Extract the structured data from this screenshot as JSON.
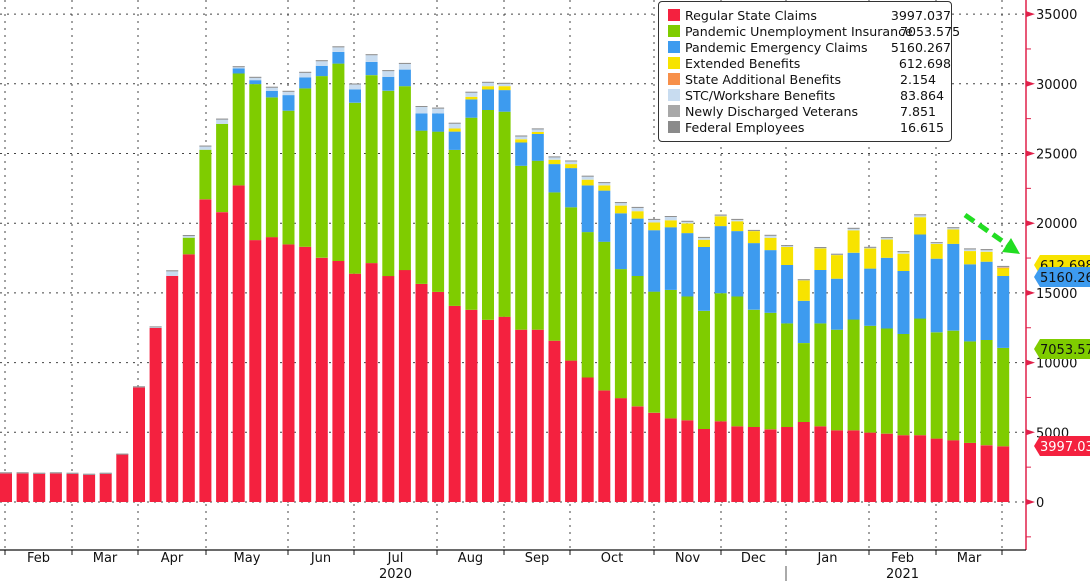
{
  "chart_data": {
    "type": "bar",
    "stacked": true,
    "y_axis": {
      "position": "right",
      "ylim": [
        -3000,
        35500
      ],
      "ticks": [
        0,
        5000,
        10000,
        15000,
        20000,
        25000,
        30000,
        35000
      ]
    },
    "grid": true,
    "legend_placement": "top-right",
    "x_ticks": {
      "months": [
        "Feb",
        "Mar",
        "Apr",
        "May",
        "Jun",
        "Jul",
        "Aug",
        "Sep",
        "Oct",
        "Nov",
        "Dec",
        "Jan",
        "Feb",
        "Mar"
      ],
      "years": [
        "2020",
        "2021"
      ]
    },
    "series": [
      {
        "name": "Regular State Claims",
        "color": "#f4213f",
        "last": "3997.037",
        "values": [
          2090,
          2090,
          2060,
          2090,
          2060,
          1990,
          2060,
          3440,
          8240,
          12490,
          16220,
          17770,
          21710,
          20790,
          22710,
          18790,
          19000,
          18480,
          18310,
          17520,
          17290,
          16380,
          17140,
          16210,
          16640,
          15640,
          15070,
          14070,
          13790,
          13070,
          13290,
          12360,
          12360,
          11570,
          10140,
          8930,
          8000,
          7450,
          6860,
          6400,
          6000,
          5860,
          5240,
          5790,
          5430,
          5380,
          5210,
          5380,
          5740,
          5430,
          5140,
          5140,
          4980,
          4900,
          4790,
          4790,
          4550,
          4430,
          4240,
          4070,
          3997.037
        ]
      },
      {
        "name": "Pandemic Unemployment Insurance",
        "color": "#7fcc00",
        "last": "7053.575",
        "values": [
          0,
          0,
          0,
          0,
          0,
          0,
          0,
          0,
          0,
          0,
          0,
          1190,
          3560,
          6330,
          8030,
          11190,
          10020,
          9590,
          11360,
          13030,
          14160,
          12260,
          13480,
          13290,
          13190,
          11000,
          11500,
          11190,
          13780,
          15050,
          14710,
          11760,
          12120,
          10640,
          11000,
          10430,
          10670,
          9260,
          9350,
          8690,
          9210,
          8880,
          8470,
          9190,
          9310,
          8410,
          8360,
          7430,
          5660,
          7380,
          7220,
          7950,
          7660,
          7550,
          7260,
          8370,
          7620,
          7860,
          7280,
          7550,
          7053.575
        ]
      },
      {
        "name": "Pandemic Emergency Claims",
        "color": "#3d9bef",
        "last": "5160.267",
        "values": [
          0,
          0,
          0,
          0,
          0,
          0,
          0,
          0,
          0,
          0,
          0,
          0,
          0,
          0,
          360,
          280,
          460,
          1120,
          780,
          740,
          840,
          950,
          950,
          1000,
          1190,
          1240,
          1310,
          1310,
          1310,
          1470,
          1550,
          1670,
          1920,
          2030,
          2810,
          3350,
          3670,
          4000,
          4120,
          4410,
          4500,
          4550,
          4580,
          4810,
          4690,
          4780,
          4500,
          4190,
          3030,
          3830,
          3660,
          4790,
          4100,
          5070,
          4520,
          6030,
          5280,
          6230,
          5530,
          5620,
          5160.267
        ]
      },
      {
        "name": "Extended Benefits",
        "color": "#f7e300",
        "last": "612.698",
        "values": [
          0,
          0,
          0,
          0,
          0,
          0,
          0,
          0,
          0,
          0,
          0,
          0,
          0,
          0,
          0,
          0,
          0,
          0,
          0,
          0,
          0,
          0,
          0,
          0,
          0,
          0,
          0,
          220,
          190,
          240,
          280,
          230,
          150,
          310,
          290,
          410,
          370,
          550,
          530,
          550,
          500,
          690,
          520,
          710,
          710,
          860,
          880,
          1290,
          1480,
          1550,
          1690,
          1600,
          1450,
          1310,
          1240,
          1240,
          1070,
          1030,
          950,
          710,
          612.698
        ]
      },
      {
        "name": "State Additional Benefits",
        "color": "#f7904a",
        "last": "2.154",
        "values": [
          0,
          0,
          0,
          0,
          0,
          0,
          0,
          0,
          0,
          0,
          0,
          0,
          0,
          0,
          0,
          0,
          0,
          0,
          0,
          0,
          0,
          0,
          0,
          0,
          0,
          0,
          0,
          0,
          0,
          0,
          0,
          0,
          0,
          0,
          0,
          0,
          0,
          0,
          0,
          0,
          0,
          0,
          0,
          0,
          0,
          0,
          0,
          0,
          0,
          0,
          0,
          0,
          0,
          0,
          0,
          0,
          0,
          0,
          0,
          0,
          2.154
        ]
      },
      {
        "name": "STC/Workshare Benefits",
        "color": "#c8dcf0",
        "last": "83.864",
        "values": [
          10,
          10,
          10,
          10,
          10,
          10,
          10,
          0,
          30,
          80,
          370,
          160,
          270,
          350,
          130,
          210,
          280,
          280,
          380,
          370,
          370,
          400,
          520,
          450,
          450,
          500,
          380,
          390,
          330,
          280,
          210,
          240,
          220,
          210,
          230,
          260,
          210,
          230,
          280,
          230,
          280,
          160,
          180,
          90,
          140,
          60,
          190,
          110,
          40,
          70,
          70,
          160,
          90,
          140,
          160,
          180,
          90,
          130,
          160,
          160,
          83.864
        ]
      },
      {
        "name": "Newly Discharged Veterans",
        "color": "#a8a8a8",
        "last": "7.851",
        "values": [
          10,
          10,
          10,
          10,
          10,
          10,
          10,
          10,
          10,
          10,
          10,
          10,
          10,
          10,
          10,
          10,
          10,
          10,
          10,
          10,
          10,
          10,
          10,
          10,
          10,
          10,
          10,
          10,
          10,
          10,
          10,
          10,
          10,
          10,
          10,
          10,
          10,
          10,
          10,
          10,
          10,
          10,
          10,
          10,
          10,
          10,
          10,
          10,
          10,
          10,
          10,
          10,
          10,
          10,
          10,
          10,
          10,
          10,
          10,
          10,
          7.851
        ]
      },
      {
        "name": "Federal Employees",
        "color": "#8a8a8a",
        "last": "16.615",
        "values": [
          20,
          20,
          20,
          20,
          20,
          20,
          20,
          20,
          20,
          20,
          20,
          20,
          20,
          20,
          20,
          20,
          20,
          20,
          20,
          20,
          20,
          20,
          20,
          20,
          20,
          20,
          20,
          20,
          20,
          20,
          20,
          20,
          20,
          20,
          20,
          20,
          20,
          20,
          20,
          20,
          20,
          20,
          20,
          20,
          20,
          20,
          20,
          20,
          20,
          20,
          20,
          20,
          20,
          20,
          20,
          20,
          20,
          20,
          20,
          20,
          16.615
        ]
      }
    ],
    "annotations": {
      "trend_arrow": {
        "style": "dashed",
        "direction": "down",
        "color": "#22dd22"
      },
      "last_value_tags": [
        "612.698",
        "5160.267",
        "7053.575",
        "3997.037"
      ]
    }
  }
}
